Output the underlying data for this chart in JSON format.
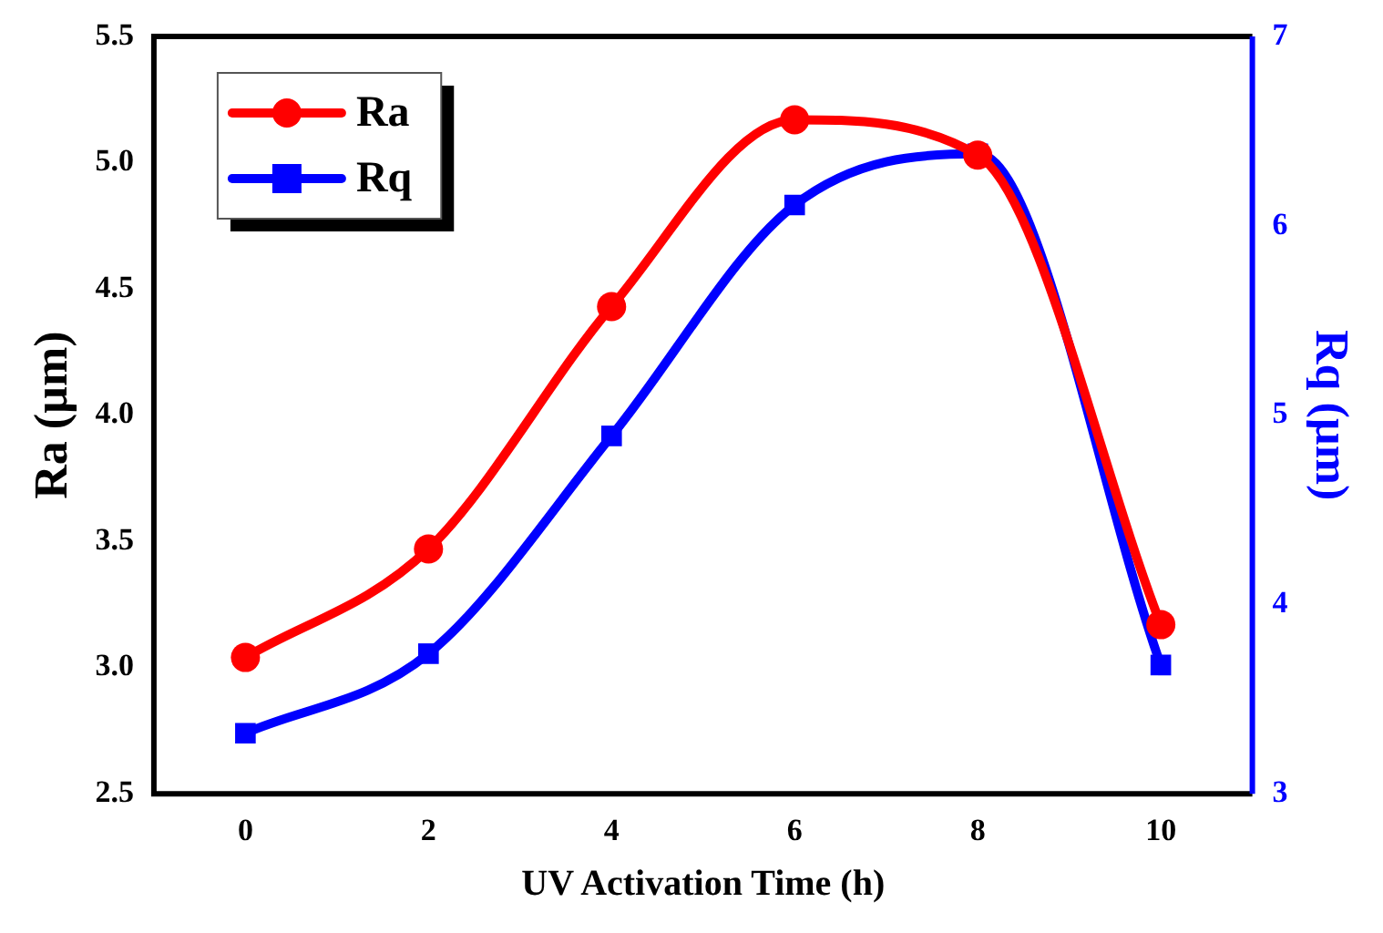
{
  "chart_data": {
    "type": "line",
    "xlabel": "UV Activation Time (h)",
    "ylabel": "Ra (µm)",
    "y2label": "Rq (µm)",
    "x": [
      0,
      2,
      4,
      6,
      8,
      10
    ],
    "series": [
      {
        "name": "Ra",
        "color": "#ff0000",
        "marker": "circle",
        "values": [
          3.04,
          3.47,
          4.43,
          5.17,
          5.03,
          3.17
        ]
      },
      {
        "name": "Rq",
        "color": "#0000ff",
        "marker": "square",
        "axis": "y2",
        "values": [
          3.32,
          3.74,
          4.89,
          6.11,
          6.38,
          3.68
        ]
      }
    ],
    "xlim": [
      -1,
      11
    ],
    "xticks": [
      0,
      2,
      4,
      6,
      8,
      10
    ],
    "ylim": [
      2.5,
      5.5
    ],
    "yticks": [
      2.5,
      {
        "value": 3,
        "label": "3.0"
      },
      3.5,
      {
        "value": 4,
        "label": "4.0"
      },
      4.5,
      {
        "value": 5,
        "label": "5.0"
      },
      5.5
    ],
    "y2lim": [
      3,
      7
    ],
    "y2ticks": [
      3,
      4,
      5,
      6,
      7
    ],
    "legend": "top left",
    "grid": false
  }
}
